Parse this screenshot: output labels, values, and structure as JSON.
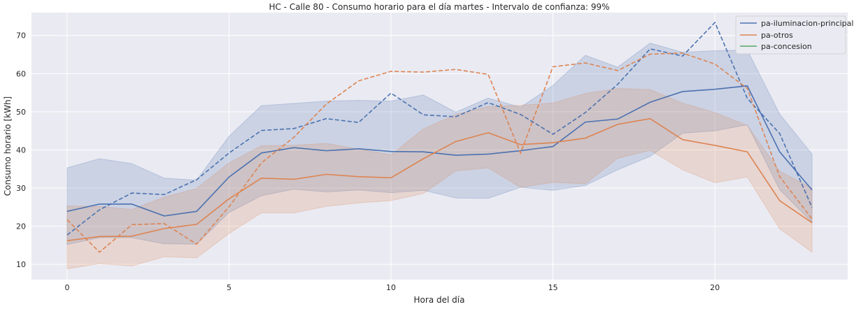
{
  "chart_data": {
    "type": "line",
    "title": "HC - Calle 80 - Consumo horario para el día martes - Intervalo de confianza: 99%",
    "xlabel": "Hora del día",
    "ylabel": "Consumo horario [kWh]",
    "xlim": [
      -1.1,
      24.1
    ],
    "ylim": [
      6,
      76
    ],
    "xticks": [
      0,
      5,
      10,
      15,
      20
    ],
    "yticks": [
      10,
      20,
      30,
      40,
      50,
      60,
      70
    ],
    "grid": true,
    "legend_position": "top-right",
    "x": [
      0,
      1,
      2,
      3,
      4,
      5,
      6,
      7,
      8,
      9,
      10,
      11,
      12,
      13,
      14,
      15,
      16,
      17,
      18,
      19,
      20,
      21,
      22,
      23
    ],
    "series": [
      {
        "name": "pa-iluminacion-principal",
        "color": "#4c72b0",
        "mean": [
          23.9,
          25.8,
          25.8,
          22.7,
          23.9,
          32.9,
          39.2,
          40.6,
          39.8,
          40.3,
          39.6,
          39.5,
          38.6,
          38.9,
          39.8,
          40.9,
          47.3,
          48.1,
          52.5,
          55.3,
          55.9,
          56.8,
          39.5,
          29.5
        ],
        "ci_low": [
          15.2,
          17.0,
          17.0,
          15.4,
          15.3,
          23.6,
          28.0,
          29.7,
          29.0,
          29.5,
          28.8,
          29.4,
          27.4,
          27.3,
          30.2,
          29.4,
          30.7,
          34.8,
          38.3,
          44.4,
          45.0,
          46.6,
          29.6,
          21.0
        ],
        "ci_high": [
          35.3,
          37.7,
          36.4,
          32.6,
          32.1,
          43.6,
          51.6,
          52.2,
          52.8,
          53.0,
          52.8,
          54.4,
          49.9,
          53.6,
          51.2,
          56.9,
          64.8,
          61.7,
          68.0,
          65.6,
          66.0,
          66.2,
          49.4,
          38.9
        ],
        "dashed": [
          17.7,
          24.3,
          28.7,
          28.3,
          32.2,
          39.2,
          45.1,
          45.6,
          48.2,
          47.2,
          54.9,
          49.2,
          48.7,
          52.4,
          49.3,
          44.1,
          49.8,
          57.2,
          66.5,
          64.6,
          73.4,
          53.5,
          44.3,
          24.9
        ]
      },
      {
        "name": "pa-otros",
        "color": "#dd8452",
        "mean": [
          16.2,
          17.3,
          17.4,
          19.4,
          20.5,
          27.2,
          32.6,
          32.3,
          33.6,
          33.0,
          32.7,
          37.7,
          42.2,
          44.5,
          41.4,
          41.9,
          43.1,
          46.7,
          48.2,
          42.7,
          41.2,
          39.5,
          26.7,
          20.9
        ],
        "ci_low": [
          8.8,
          10.2,
          9.6,
          12.0,
          11.7,
          18.1,
          23.5,
          23.5,
          25.2,
          26.1,
          26.7,
          28.6,
          34.5,
          35.3,
          30.2,
          31.5,
          31.1,
          37.8,
          39.9,
          34.8,
          31.4,
          32.9,
          19.3,
          13.2
        ],
        "ci_high": [
          25.3,
          25.2,
          24.4,
          27.6,
          29.9,
          36.6,
          41.1,
          41.2,
          41.7,
          40.2,
          38.7,
          45.5,
          49.3,
          51.4,
          51.7,
          52.3,
          54.8,
          56.1,
          55.8,
          52.3,
          49.8,
          46.4,
          34.4,
          30.0
        ],
        "dashed": [
          21.7,
          13.2,
          20.4,
          20.7,
          15.3,
          25.1,
          36.6,
          43.3,
          52.0,
          58.1,
          60.6,
          60.4,
          61.1,
          59.8,
          39.2,
          61.8,
          62.8,
          60.8,
          65.1,
          65.4,
          62.5,
          56.1,
          33.0,
          21.9
        ]
      },
      {
        "name": "pa-concesion",
        "color": "#55a868",
        "mean": [],
        "ci_low": [],
        "ci_high": [],
        "dashed": []
      }
    ]
  }
}
